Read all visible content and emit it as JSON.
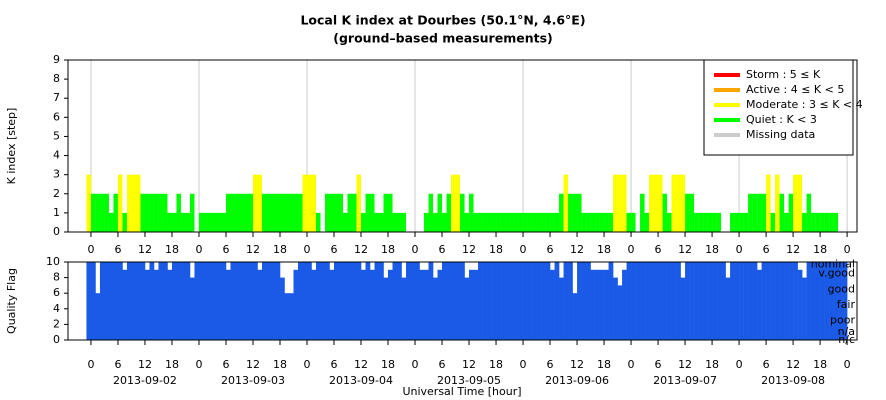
{
  "chart_data": [
    {
      "type": "bar",
      "title": "Local K index at Dourbes (50.1°N, 4.6°E)",
      "subtitle": "(ground–based measurements)",
      "y_label": "K index [step]",
      "legend": "upper right",
      "legend_items": [
        {
          "name": "Storm : 5 ≤ K",
          "color": "#ff0000",
          "range": [
            5,
            null
          ]
        },
        {
          "name": "Active : 4 ≤ K < 5",
          "color": "#ffa500",
          "range": [
            4,
            5
          ]
        },
        {
          "name": "Moderate : 3 ≤ K < 4",
          "color": "#ffff00",
          "range": [
            3,
            4
          ]
        },
        {
          "name": "Quiet : K < 3",
          "color": "#00ff00",
          "range": [
            null,
            3
          ]
        },
        {
          "name": "Missing data",
          "color": "#cccccc"
        }
      ],
      "x": [
        -1,
        0,
        1,
        2,
        3,
        4,
        5,
        6,
        7,
        8,
        9,
        10,
        11,
        12,
        13,
        14,
        15,
        16,
        17,
        18,
        19,
        20,
        21,
        22,
        23,
        24,
        25,
        26,
        27,
        28,
        29,
        30,
        31,
        32,
        33,
        34,
        35,
        36,
        37,
        38,
        39,
        40,
        41,
        42,
        43,
        44,
        45,
        46,
        47,
        48,
        49,
        50,
        51,
        52,
        53,
        54,
        55,
        56,
        57,
        58,
        59,
        60,
        61,
        62,
        63,
        64,
        65,
        66,
        67,
        68,
        69,
        70,
        71,
        72,
        73,
        74,
        75,
        76,
        77,
        78,
        79,
        80,
        81,
        82,
        83,
        84,
        85,
        86,
        87,
        88,
        89,
        90,
        91,
        92,
        93,
        94,
        95,
        96,
        97,
        98,
        99,
        100,
        101,
        102,
        103,
        104,
        105,
        106,
        107,
        108,
        109,
        110,
        111,
        112,
        113,
        114,
        115,
        116,
        117,
        118,
        119,
        120,
        121,
        122,
        123,
        124,
        125,
        126,
        127,
        128,
        129,
        130,
        131,
        132,
        133,
        134,
        135,
        136,
        137,
        138,
        139,
        140,
        141,
        142,
        143,
        144,
        145,
        146,
        147,
        148,
        149,
        150,
        151,
        152,
        153,
        154,
        155,
        156,
        157,
        158,
        159,
        160,
        161,
        162,
        163,
        164,
        165,
        166,
        167
      ],
      "values": [
        3,
        2,
        2,
        2,
        2,
        1,
        2,
        3,
        1,
        3,
        3,
        3,
        2,
        2,
        2,
        2,
        2,
        2,
        1,
        1,
        2,
        1,
        1,
        2,
        0,
        1,
        1,
        1,
        1,
        1,
        1,
        2,
        2,
        2,
        2,
        2,
        2,
        3,
        3,
        2,
        2,
        2,
        2,
        2,
        2,
        2,
        2,
        2,
        3,
        3,
        3,
        1,
        0,
        2,
        2,
        2,
        2,
        1,
        2,
        2,
        3,
        1,
        2,
        2,
        1,
        1,
        2,
        2,
        1,
        1,
        1,
        0,
        0,
        0,
        0,
        1,
        2,
        1,
        2,
        1,
        2,
        3,
        3,
        2,
        1,
        2,
        1,
        1,
        1,
        1,
        1,
        1,
        1,
        1,
        1,
        1,
        1,
        1,
        1,
        1,
        1,
        1,
        1,
        1,
        1,
        2,
        3,
        2,
        2,
        2,
        1,
        1,
        1,
        1,
        1,
        1,
        1,
        3,
        3,
        3,
        1,
        1,
        0,
        2,
        1,
        3,
        3,
        3,
        2,
        1,
        3,
        3,
        3,
        2,
        2,
        1,
        1,
        1,
        1,
        1,
        1,
        0,
        0,
        1,
        1,
        1,
        1,
        2,
        2,
        2,
        2,
        3,
        1,
        3,
        2,
        1,
        2,
        3,
        3,
        1,
        2,
        1,
        1,
        1,
        1,
        1,
        1,
        0,
        0
      ],
      "xlim": [
        -5.1,
        170.2
      ],
      "ylim": [
        0,
        9
      ],
      "yticks": [
        0,
        1,
        2,
        3,
        4,
        5,
        6,
        7,
        8,
        9
      ],
      "xticks": [
        {
          "value": 0,
          "label": "0"
        },
        {
          "value": 6,
          "label": "6"
        },
        {
          "value": 12,
          "label": "12"
        },
        {
          "value": 18,
          "label": "18"
        },
        {
          "value": 24,
          "label": "0"
        },
        {
          "value": 30,
          "label": "6"
        },
        {
          "value": 36,
          "label": "12"
        },
        {
          "value": 42,
          "label": "18"
        },
        {
          "value": 48,
          "label": "0"
        },
        {
          "value": 54,
          "label": "6"
        },
        {
          "value": 60,
          "label": "12"
        },
        {
          "value": 66,
          "label": "18"
        },
        {
          "value": 72,
          "label": "0"
        },
        {
          "value": 78,
          "label": "6"
        },
        {
          "value": 84,
          "label": "12"
        },
        {
          "value": 90,
          "label": "18"
        },
        {
          "value": 96,
          "label": "0"
        },
        {
          "value": 102,
          "label": "6"
        },
        {
          "value": 108,
          "label": "12"
        },
        {
          "value": 114,
          "label": "18"
        },
        {
          "value": 120,
          "label": "0"
        },
        {
          "value": 126,
          "label": "6"
        },
        {
          "value": 132,
          "label": "12"
        },
        {
          "value": 138,
          "label": "18"
        },
        {
          "value": 144,
          "label": "0"
        },
        {
          "value": 150,
          "label": "6"
        },
        {
          "value": 156,
          "label": "12"
        },
        {
          "value": 162,
          "label": "18"
        },
        {
          "value": 168,
          "label": "0"
        }
      ]
    },
    {
      "type": "bar",
      "y_label": "Quality Flag",
      "x_label": "Universal Time [hour]",
      "color": "#1a5ae6",
      "values": [
        10,
        10,
        6,
        10,
        10,
        10,
        10,
        10,
        9,
        10,
        10,
        10,
        10,
        9,
        10,
        9,
        10,
        10,
        9,
        10,
        10,
        10,
        10,
        8,
        10,
        10,
        10,
        10,
        10,
        10,
        10,
        9,
        10,
        10,
        10,
        10,
        10,
        10,
        9,
        10,
        10,
        10,
        10,
        8,
        6,
        6,
        9,
        10,
        10,
        10,
        9,
        10,
        10,
        10,
        9,
        10,
        10,
        10,
        10,
        10,
        10,
        9,
        10,
        9,
        10,
        10,
        8,
        9,
        10,
        10,
        8,
        10,
        10,
        10,
        9,
        9,
        10,
        8,
        9,
        10,
        10,
        10,
        10,
        10,
        8,
        9,
        9,
        10,
        10,
        10,
        10,
        10,
        10,
        10,
        10,
        10,
        10,
        10,
        10,
        10,
        10,
        10,
        10,
        9,
        10,
        8,
        10,
        10,
        6,
        10,
        10,
        10,
        9,
        9,
        9,
        9,
        10,
        8,
        7,
        9,
        10,
        10,
        10,
        10,
        10,
        10,
        10,
        10,
        10,
        10,
        10,
        10,
        8,
        10,
        10,
        10,
        10,
        10,
        10,
        10,
        10,
        10,
        8,
        10,
        10,
        10,
        10,
        10,
        10,
        9,
        10,
        10,
        10,
        10,
        10,
        10,
        10,
        10,
        9,
        8,
        10,
        10,
        10,
        10,
        10,
        10,
        10,
        10,
        10
      ],
      "ylim": [
        0,
        10
      ],
      "yticks": [
        0,
        2,
        4,
        6,
        8,
        10
      ],
      "flag_labels": [
        {
          "value": 9.7,
          "label": "nominal"
        },
        {
          "value": 8.5,
          "label": "v.good"
        },
        {
          "value": 6.5,
          "label": "good"
        },
        {
          "value": 4.5,
          "label": "fair"
        },
        {
          "value": 2.5,
          "label": "poor"
        },
        {
          "value": 1,
          "label": "n/a"
        },
        {
          "value": 0,
          "label": "n/c"
        }
      ],
      "date_ticks": [
        {
          "value": 12,
          "label": "2013-09-02"
        },
        {
          "value": 36,
          "label": "2013-09-03"
        },
        {
          "value": 60,
          "label": "2013-09-04"
        },
        {
          "value": 84,
          "label": "2013-09-05"
        },
        {
          "value": 108,
          "label": "2013-09-06"
        },
        {
          "value": 132,
          "label": "2013-09-07"
        },
        {
          "value": 156,
          "label": "2013-09-08"
        }
      ]
    }
  ]
}
